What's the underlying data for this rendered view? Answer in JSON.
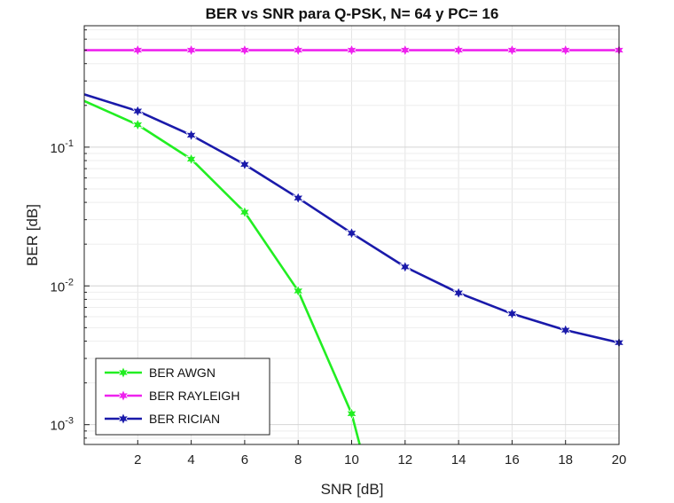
{
  "chart_data": {
    "type": "line",
    "title": "BER vs SNR para Q-PSK, N= 64 y PC= 16",
    "xlabel": "SNR [dB]",
    "ylabel": "BER [dB]",
    "xlim": [
      0,
      20
    ],
    "ylim": [
      0.00072,
      0.75
    ],
    "yscale": "log",
    "grid": true,
    "legend_location": "bottom-left",
    "x_ticks": [
      2,
      4,
      6,
      8,
      10,
      12,
      14,
      16,
      18,
      20
    ],
    "x_tick_labels": [
      "2",
      "4",
      "6",
      "8",
      "10",
      "12",
      "14",
      "16",
      "18",
      "20"
    ],
    "y_ticks": [
      {
        "value": 0.1,
        "base": "10",
        "exp": "-1"
      },
      {
        "value": 0.01,
        "base": "10",
        "exp": "-2"
      },
      {
        "value": 0.001,
        "base": "10",
        "exp": "-3"
      }
    ],
    "series": [
      {
        "name": "BER AWGN",
        "color": "#22ee22",
        "x": [
          0,
          2,
          4,
          6,
          8,
          10,
          10.3
        ],
        "values": [
          0.215,
          0.145,
          0.082,
          0.034,
          0.0092,
          0.0012,
          0.00072
        ]
      },
      {
        "name": "BER RAYLEIGH",
        "color": "#ee22ee",
        "x": [
          0,
          2,
          4,
          6,
          8,
          10,
          12,
          14,
          16,
          18,
          20
        ],
        "values": [
          0.5,
          0.5,
          0.5,
          0.5,
          0.5,
          0.5,
          0.5,
          0.5,
          0.5,
          0.5,
          0.5
        ]
      },
      {
        "name": "BER RICIAN",
        "color": "#1a1aaa",
        "x": [
          0,
          2,
          4,
          6,
          8,
          10,
          12,
          14,
          16,
          18,
          20
        ],
        "values": [
          0.24,
          0.182,
          0.122,
          0.075,
          0.043,
          0.024,
          0.0137,
          0.0089,
          0.0063,
          0.0048,
          0.0039
        ]
      }
    ]
  }
}
